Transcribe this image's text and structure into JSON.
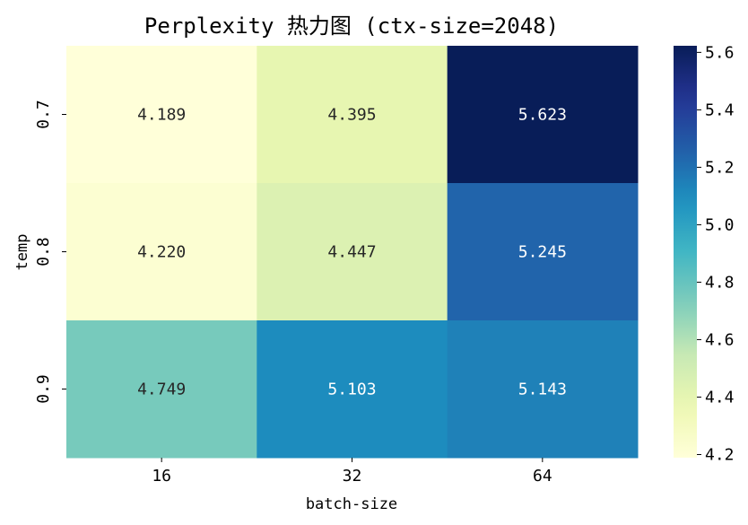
{
  "chart_data": {
    "type": "heatmap",
    "title": "Perplexity 热力图 (ctx-size=2048)",
    "xlabel": "batch-size",
    "ylabel": "temp",
    "x_categories": [
      "16",
      "32",
      "64"
    ],
    "y_categories": [
      "0.7",
      "0.8",
      "0.9"
    ],
    "values": [
      [
        4.189,
        4.395,
        5.623
      ],
      [
        4.22,
        4.447,
        5.245
      ],
      [
        4.749,
        5.103,
        5.143
      ]
    ],
    "value_labels": [
      [
        "4.189",
        "4.395",
        "5.623"
      ],
      [
        "4.220",
        "4.447",
        "5.245"
      ],
      [
        "4.749",
        "5.103",
        "5.143"
      ]
    ],
    "colormap": "YlGnBu",
    "vmin": 4.189,
    "vmax": 5.623,
    "colorbar_ticks": [
      "4.2",
      "4.4",
      "4.6",
      "4.8",
      "5.0",
      "5.2",
      "5.4",
      "5.6"
    ],
    "colors": {
      "low": "#ffffd9",
      "high": "#081d58"
    }
  }
}
